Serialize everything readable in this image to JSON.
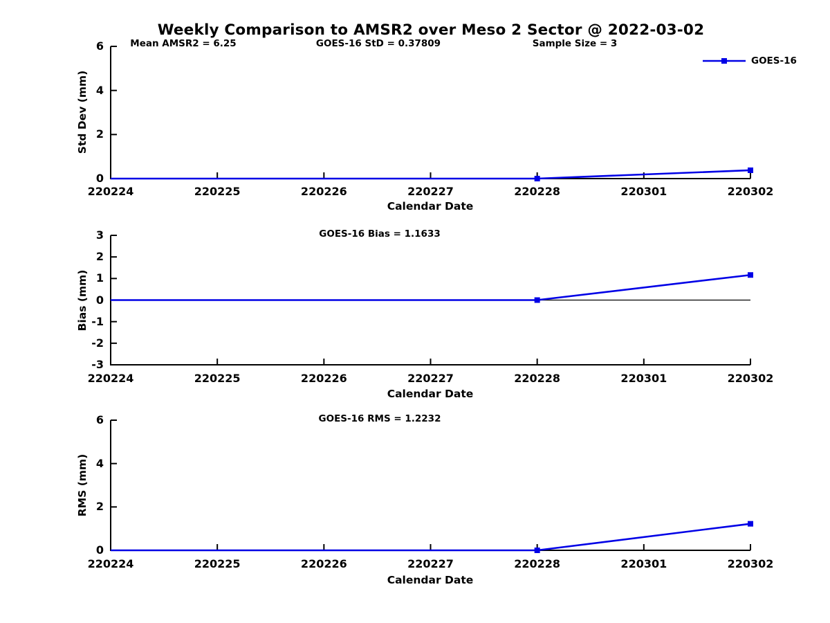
{
  "chart_data": {
    "type": "line",
    "title": "Weekly Comparison to AMSR2 over Meso 2 Sector @ 2022-03-02",
    "xlabel": "Calendar Date",
    "x_categories": [
      "220224",
      "220225",
      "220226",
      "220227",
      "220228",
      "220301",
      "220302"
    ],
    "grid": false,
    "legend": {
      "entries": [
        "GOES-16"
      ],
      "position": "top-right"
    },
    "series_color": "#0000E6",
    "zero_line_color": "#000000",
    "panels": [
      {
        "name": "std-dev",
        "ylabel": "Std Dev (mm)",
        "ylim": [
          0,
          6
        ],
        "yticks": [
          0,
          2,
          4,
          6
        ],
        "annotations": [
          "Mean AMSR2 = 6.25",
          "GOES-16 StD = 0.37809",
          "Sample Size = 3"
        ],
        "zero_line": true,
        "series": [
          {
            "name": "GOES-16",
            "points": [
              {
                "x": "220224",
                "y": 0,
                "marker": false
              },
              {
                "x": "220228",
                "y": 0,
                "marker": true
              },
              {
                "x": "220302",
                "y": 0.37809,
                "marker": true
              }
            ]
          }
        ]
      },
      {
        "name": "bias",
        "ylabel": "Bias (mm)",
        "ylim": [
          -3,
          3
        ],
        "yticks": [
          -3,
          -2,
          -1,
          0,
          1,
          2,
          3
        ],
        "annotations": [
          "GOES-16 Bias  = 1.1633"
        ],
        "zero_line": true,
        "series": [
          {
            "name": "GOES-16",
            "points": [
              {
                "x": "220224",
                "y": 0,
                "marker": false
              },
              {
                "x": "220228",
                "y": 0,
                "marker": true
              },
              {
                "x": "220302",
                "y": 1.1633,
                "marker": true
              }
            ]
          }
        ]
      },
      {
        "name": "rms",
        "ylabel": "RMS (mm)",
        "ylim": [
          0,
          6
        ],
        "yticks": [
          0,
          2,
          4,
          6
        ],
        "annotations": [
          "GOES-16 RMS = 1.2232"
        ],
        "zero_line": true,
        "series": [
          {
            "name": "GOES-16",
            "points": [
              {
                "x": "220224",
                "y": 0,
                "marker": false
              },
              {
                "x": "220228",
                "y": 0,
                "marker": true
              },
              {
                "x": "220302",
                "y": 1.2232,
                "marker": true
              }
            ]
          }
        ]
      }
    ]
  }
}
